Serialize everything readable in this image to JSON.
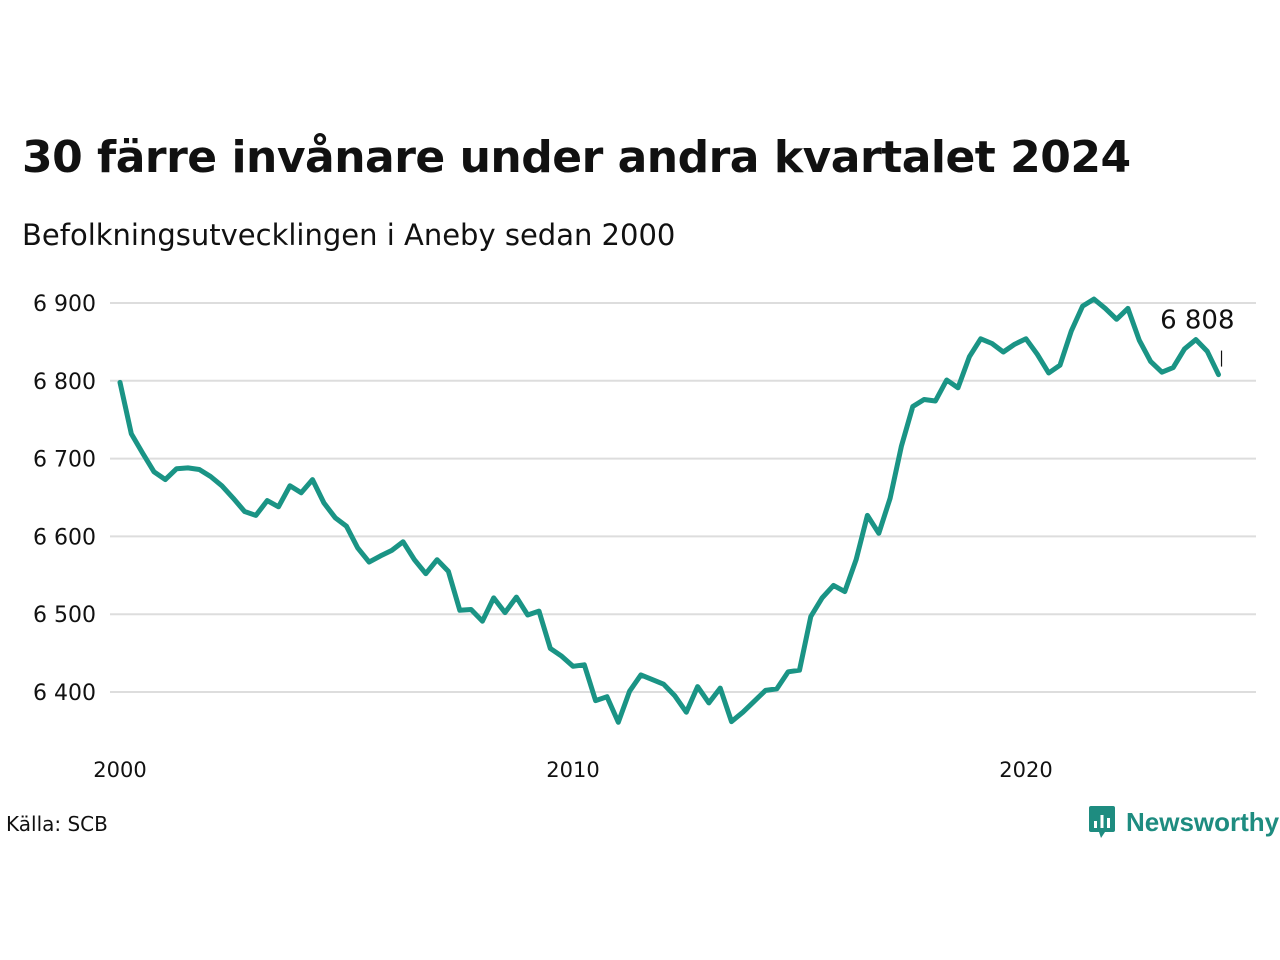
{
  "header": {
    "title": "30 färre invånare under andra kvartalet 2024",
    "subtitle": "Befolkningsutvecklingen i Aneby sedan 2000"
  },
  "footer": {
    "source": "Källa: SCB",
    "brand": "Newsworthy"
  },
  "colors": {
    "line": "#1a9485",
    "grid": "#dddddd",
    "text": "#111111",
    "brand": "#1e8c80"
  },
  "chart_data": {
    "type": "line",
    "title": "30 färre invånare under andra kvartalet 2024",
    "subtitle": "Befolkningsutvecklingen i Aneby sedan 2000",
    "xlabel": "",
    "ylabel": "",
    "x_start": "2000 Q1",
    "frequency": "quarterly",
    "ylim": [
      6340,
      6910
    ],
    "xlim": [
      2000,
      2025
    ],
    "yticks": [
      6400,
      6500,
      6600,
      6700,
      6800,
      6900
    ],
    "ytick_labels": [
      "6 400",
      "6 500",
      "6 600",
      "6 700",
      "6 800",
      "6 900"
    ],
    "xticks": [
      2000,
      2010,
      2020
    ],
    "xtick_labels": [
      "2000",
      "2010",
      "2020"
    ],
    "grid": true,
    "legend": "none",
    "series": [
      {
        "values": [
          6798,
          6732,
          6707,
          6683,
          6673,
          6687,
          6688,
          6686,
          6677,
          6665,
          6649,
          6632,
          6627,
          6646,
          6638,
          6665,
          6656,
          6673,
          6643,
          6624,
          6613,
          6585,
          6567,
          6575,
          6582,
          6593,
          6570,
          6552,
          6570,
          6555,
          6505,
          6506,
          6491,
          6521,
          6502,
          6522,
          6499,
          6504,
          6456,
          6446,
          6433,
          6435,
          6389,
          6394,
          6361,
          6401,
          6422,
          6416,
          6410,
          6395,
          6374,
          6407,
          6386,
          6405,
          6362,
          6374,
          6388,
          6402,
          6404,
          6426,
          6428,
          6497,
          6521,
          6537,
          6529,
          6570,
          6627,
          6604,
          6649,
          6716,
          6767,
          6776,
          6774,
          6801,
          6791,
          6831,
          6854,
          6848,
          6837,
          6847,
          6854,
          6834,
          6810,
          6820,
          6864,
          6896,
          6905,
          6893,
          6879,
          6893,
          6852,
          6825,
          6811,
          6817,
          6841,
          6853,
          6838,
          6808
        ]
      }
    ],
    "annotations": [
      {
        "label": "6 808",
        "value": 6808,
        "position": "last point"
      }
    ]
  }
}
